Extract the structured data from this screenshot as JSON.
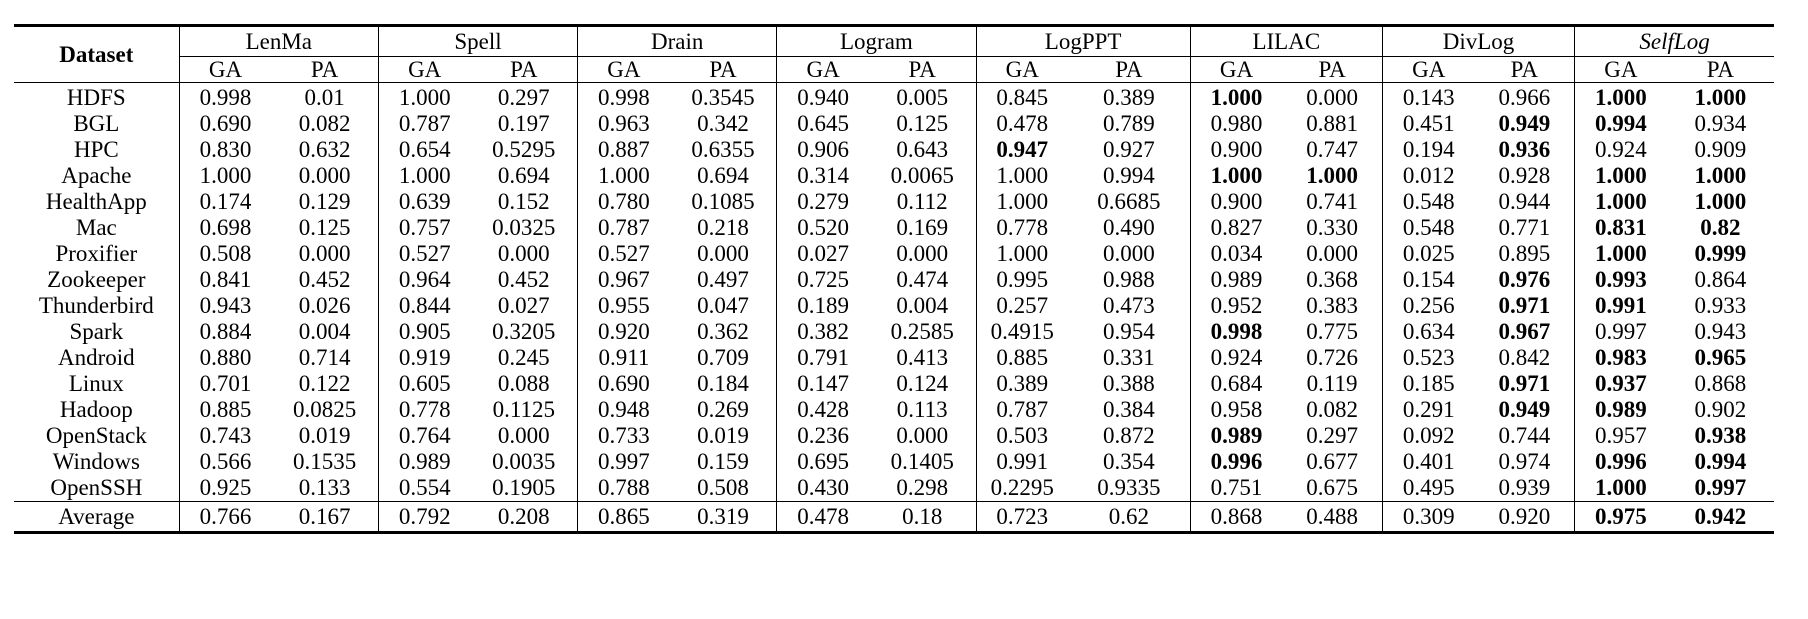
{
  "header": {
    "dataset_label": "Dataset",
    "methods": [
      "LenMa",
      "Spell",
      "Drain",
      "Logram",
      "LogPPT",
      "LILAC",
      "DivLog",
      "SelfLog"
    ],
    "sub_labels": [
      "GA",
      "PA"
    ]
  },
  "rows": [
    {
      "name": "HDFS",
      "cells": [
        {
          "v": "0.998",
          "b": false
        },
        {
          "v": "0.01",
          "b": false
        },
        {
          "v": "1.000",
          "b": false
        },
        {
          "v": "0.297",
          "b": false
        },
        {
          "v": "0.998",
          "b": false
        },
        {
          "v": "0.3545",
          "b": false
        },
        {
          "v": "0.940",
          "b": false
        },
        {
          "v": "0.005",
          "b": false
        },
        {
          "v": "0.845",
          "b": false
        },
        {
          "v": "0.389",
          "b": false
        },
        {
          "v": "1.000",
          "b": true
        },
        {
          "v": "0.000",
          "b": false
        },
        {
          "v": "0.143",
          "b": false
        },
        {
          "v": "0.966",
          "b": false
        },
        {
          "v": "1.000",
          "b": true
        },
        {
          "v": "1.000",
          "b": true
        }
      ]
    },
    {
      "name": "BGL",
      "cells": [
        {
          "v": "0.690",
          "b": false
        },
        {
          "v": "0.082",
          "b": false
        },
        {
          "v": "0.787",
          "b": false
        },
        {
          "v": "0.197",
          "b": false
        },
        {
          "v": "0.963",
          "b": false
        },
        {
          "v": "0.342",
          "b": false
        },
        {
          "v": "0.645",
          "b": false
        },
        {
          "v": "0.125",
          "b": false
        },
        {
          "v": "0.478",
          "b": false
        },
        {
          "v": "0.789",
          "b": false
        },
        {
          "v": "0.980",
          "b": false
        },
        {
          "v": "0.881",
          "b": false
        },
        {
          "v": "0.451",
          "b": false
        },
        {
          "v": "0.949",
          "b": true
        },
        {
          "v": "0.994",
          "b": true
        },
        {
          "v": "0.934",
          "b": false
        }
      ]
    },
    {
      "name": "HPC",
      "cells": [
        {
          "v": "0.830",
          "b": false
        },
        {
          "v": "0.632",
          "b": false
        },
        {
          "v": "0.654",
          "b": false
        },
        {
          "v": "0.5295",
          "b": false
        },
        {
          "v": "0.887",
          "b": false
        },
        {
          "v": "0.6355",
          "b": false
        },
        {
          "v": "0.906",
          "b": false
        },
        {
          "v": "0.643",
          "b": false
        },
        {
          "v": "0.947",
          "b": true
        },
        {
          "v": "0.927",
          "b": false
        },
        {
          "v": "0.900",
          "b": false
        },
        {
          "v": "0.747",
          "b": false
        },
        {
          "v": "0.194",
          "b": false
        },
        {
          "v": "0.936",
          "b": true
        },
        {
          "v": "0.924",
          "b": false
        },
        {
          "v": "0.909",
          "b": false
        }
      ]
    },
    {
      "name": "Apache",
      "cells": [
        {
          "v": "1.000",
          "b": false
        },
        {
          "v": "0.000",
          "b": false
        },
        {
          "v": "1.000",
          "b": false
        },
        {
          "v": "0.694",
          "b": false
        },
        {
          "v": "1.000",
          "b": false
        },
        {
          "v": "0.694",
          "b": false
        },
        {
          "v": "0.314",
          "b": false
        },
        {
          "v": "0.0065",
          "b": false
        },
        {
          "v": "1.000",
          "b": false
        },
        {
          "v": "0.994",
          "b": false
        },
        {
          "v": "1.000",
          "b": true
        },
        {
          "v": "1.000",
          "b": true
        },
        {
          "v": "0.012",
          "b": false
        },
        {
          "v": "0.928",
          "b": false
        },
        {
          "v": "1.000",
          "b": true
        },
        {
          "v": "1.000",
          "b": true
        }
      ]
    },
    {
      "name": "HealthApp",
      "cells": [
        {
          "v": "0.174",
          "b": false
        },
        {
          "v": "0.129",
          "b": false
        },
        {
          "v": "0.639",
          "b": false
        },
        {
          "v": "0.152",
          "b": false
        },
        {
          "v": "0.780",
          "b": false
        },
        {
          "v": "0.1085",
          "b": false
        },
        {
          "v": "0.279",
          "b": false
        },
        {
          "v": "0.112",
          "b": false
        },
        {
          "v": "1.000",
          "b": false
        },
        {
          "v": "0.6685",
          "b": false
        },
        {
          "v": "0.900",
          "b": false
        },
        {
          "v": "0.741",
          "b": false
        },
        {
          "v": "0.548",
          "b": false
        },
        {
          "v": "0.944",
          "b": false
        },
        {
          "v": "1.000",
          "b": true
        },
        {
          "v": "1.000",
          "b": true
        }
      ]
    },
    {
      "name": "Mac",
      "cells": [
        {
          "v": "0.698",
          "b": false
        },
        {
          "v": "0.125",
          "b": false
        },
        {
          "v": "0.757",
          "b": false
        },
        {
          "v": "0.0325",
          "b": false
        },
        {
          "v": "0.787",
          "b": false
        },
        {
          "v": "0.218",
          "b": false
        },
        {
          "v": "0.520",
          "b": false
        },
        {
          "v": "0.169",
          "b": false
        },
        {
          "v": "0.778",
          "b": false
        },
        {
          "v": "0.490",
          "b": false
        },
        {
          "v": "0.827",
          "b": false
        },
        {
          "v": "0.330",
          "b": false
        },
        {
          "v": "0.548",
          "b": false
        },
        {
          "v": "0.771",
          "b": false
        },
        {
          "v": "0.831",
          "b": true
        },
        {
          "v": "0.82",
          "b": true
        }
      ]
    },
    {
      "name": "Proxifier",
      "cells": [
        {
          "v": "0.508",
          "b": false
        },
        {
          "v": "0.000",
          "b": false
        },
        {
          "v": "0.527",
          "b": false
        },
        {
          "v": "0.000",
          "b": false
        },
        {
          "v": "0.527",
          "b": false
        },
        {
          "v": "0.000",
          "b": false
        },
        {
          "v": "0.027",
          "b": false
        },
        {
          "v": "0.000",
          "b": false
        },
        {
          "v": "1.000",
          "b": false
        },
        {
          "v": "0.000",
          "b": false
        },
        {
          "v": "0.034",
          "b": false
        },
        {
          "v": "0.000",
          "b": false
        },
        {
          "v": "0.025",
          "b": false
        },
        {
          "v": "0.895",
          "b": false
        },
        {
          "v": "1.000",
          "b": true
        },
        {
          "v": "0.999",
          "b": true
        }
      ]
    },
    {
      "name": "Zookeeper",
      "cells": [
        {
          "v": "0.841",
          "b": false
        },
        {
          "v": "0.452",
          "b": false
        },
        {
          "v": "0.964",
          "b": false
        },
        {
          "v": "0.452",
          "b": false
        },
        {
          "v": "0.967",
          "b": false
        },
        {
          "v": "0.497",
          "b": false
        },
        {
          "v": "0.725",
          "b": false
        },
        {
          "v": "0.474",
          "b": false
        },
        {
          "v": "0.995",
          "b": false
        },
        {
          "v": "0.988",
          "b": false
        },
        {
          "v": "0.989",
          "b": false
        },
        {
          "v": "0.368",
          "b": false
        },
        {
          "v": "0.154",
          "b": false
        },
        {
          "v": "0.976",
          "b": true
        },
        {
          "v": "0.993",
          "b": true
        },
        {
          "v": "0.864",
          "b": false
        }
      ]
    },
    {
      "name": "Thunderbird",
      "cells": [
        {
          "v": "0.943",
          "b": false
        },
        {
          "v": "0.026",
          "b": false
        },
        {
          "v": "0.844",
          "b": false
        },
        {
          "v": "0.027",
          "b": false
        },
        {
          "v": "0.955",
          "b": false
        },
        {
          "v": "0.047",
          "b": false
        },
        {
          "v": "0.189",
          "b": false
        },
        {
          "v": "0.004",
          "b": false
        },
        {
          "v": "0.257",
          "b": false
        },
        {
          "v": "0.473",
          "b": false
        },
        {
          "v": "0.952",
          "b": false
        },
        {
          "v": "0.383",
          "b": false
        },
        {
          "v": "0.256",
          "b": false
        },
        {
          "v": "0.971",
          "b": true
        },
        {
          "v": "0.991",
          "b": true
        },
        {
          "v": "0.933",
          "b": false
        }
      ]
    },
    {
      "name": "Spark",
      "cells": [
        {
          "v": "0.884",
          "b": false
        },
        {
          "v": "0.004",
          "b": false
        },
        {
          "v": "0.905",
          "b": false
        },
        {
          "v": "0.3205",
          "b": false
        },
        {
          "v": "0.920",
          "b": false
        },
        {
          "v": "0.362",
          "b": false
        },
        {
          "v": "0.382",
          "b": false
        },
        {
          "v": "0.2585",
          "b": false
        },
        {
          "v": "0.4915",
          "b": false
        },
        {
          "v": "0.954",
          "b": false
        },
        {
          "v": "0.998",
          "b": true
        },
        {
          "v": "0.775",
          "b": false
        },
        {
          "v": "0.634",
          "b": false
        },
        {
          "v": "0.967",
          "b": true
        },
        {
          "v": "0.997",
          "b": false
        },
        {
          "v": "0.943",
          "b": false
        }
      ]
    },
    {
      "name": "Android",
      "cells": [
        {
          "v": "0.880",
          "b": false
        },
        {
          "v": "0.714",
          "b": false
        },
        {
          "v": "0.919",
          "b": false
        },
        {
          "v": "0.245",
          "b": false
        },
        {
          "v": "0.911",
          "b": false
        },
        {
          "v": "0.709",
          "b": false
        },
        {
          "v": "0.791",
          "b": false
        },
        {
          "v": "0.413",
          "b": false
        },
        {
          "v": "0.885",
          "b": false
        },
        {
          "v": "0.331",
          "b": false
        },
        {
          "v": "0.924",
          "b": false
        },
        {
          "v": "0.726",
          "b": false
        },
        {
          "v": "0.523",
          "b": false
        },
        {
          "v": "0.842",
          "b": false
        },
        {
          "v": "0.983",
          "b": true
        },
        {
          "v": "0.965",
          "b": true
        }
      ]
    },
    {
      "name": "Linux",
      "cells": [
        {
          "v": "0.701",
          "b": false
        },
        {
          "v": "0.122",
          "b": false
        },
        {
          "v": "0.605",
          "b": false
        },
        {
          "v": "0.088",
          "b": false
        },
        {
          "v": "0.690",
          "b": false
        },
        {
          "v": "0.184",
          "b": false
        },
        {
          "v": "0.147",
          "b": false
        },
        {
          "v": "0.124",
          "b": false
        },
        {
          "v": "0.389",
          "b": false
        },
        {
          "v": "0.388",
          "b": false
        },
        {
          "v": "0.684",
          "b": false
        },
        {
          "v": "0.119",
          "b": false
        },
        {
          "v": "0.185",
          "b": false
        },
        {
          "v": "0.971",
          "b": true
        },
        {
          "v": "0.937",
          "b": true
        },
        {
          "v": "0.868",
          "b": false
        }
      ]
    },
    {
      "name": "Hadoop",
      "cells": [
        {
          "v": "0.885",
          "b": false
        },
        {
          "v": "0.0825",
          "b": false
        },
        {
          "v": "0.778",
          "b": false
        },
        {
          "v": "0.1125",
          "b": false
        },
        {
          "v": "0.948",
          "b": false
        },
        {
          "v": "0.269",
          "b": false
        },
        {
          "v": "0.428",
          "b": false
        },
        {
          "v": "0.113",
          "b": false
        },
        {
          "v": "0.787",
          "b": false
        },
        {
          "v": "0.384",
          "b": false
        },
        {
          "v": "0.958",
          "b": false
        },
        {
          "v": "0.082",
          "b": false
        },
        {
          "v": "0.291",
          "b": false
        },
        {
          "v": "0.949",
          "b": true
        },
        {
          "v": "0.989",
          "b": true
        },
        {
          "v": "0.902",
          "b": false
        }
      ]
    },
    {
      "name": "OpenStack",
      "cells": [
        {
          "v": "0.743",
          "b": false
        },
        {
          "v": "0.019",
          "b": false
        },
        {
          "v": "0.764",
          "b": false
        },
        {
          "v": "0.000",
          "b": false
        },
        {
          "v": "0.733",
          "b": false
        },
        {
          "v": "0.019",
          "b": false
        },
        {
          "v": "0.236",
          "b": false
        },
        {
          "v": "0.000",
          "b": false
        },
        {
          "v": "0.503",
          "b": false
        },
        {
          "v": "0.872",
          "b": false
        },
        {
          "v": "0.989",
          "b": true
        },
        {
          "v": "0.297",
          "b": false
        },
        {
          "v": "0.092",
          "b": false
        },
        {
          "v": "0.744",
          "b": false
        },
        {
          "v": "0.957",
          "b": false
        },
        {
          "v": "0.938",
          "b": true
        }
      ]
    },
    {
      "name": "Windows",
      "cells": [
        {
          "v": "0.566",
          "b": false
        },
        {
          "v": "0.1535",
          "b": false
        },
        {
          "v": "0.989",
          "b": false
        },
        {
          "v": "0.0035",
          "b": false
        },
        {
          "v": "0.997",
          "b": false
        },
        {
          "v": "0.159",
          "b": false
        },
        {
          "v": "0.695",
          "b": false
        },
        {
          "v": "0.1405",
          "b": false
        },
        {
          "v": "0.991",
          "b": false
        },
        {
          "v": "0.354",
          "b": false
        },
        {
          "v": "0.996",
          "b": true
        },
        {
          "v": "0.677",
          "b": false
        },
        {
          "v": "0.401",
          "b": false
        },
        {
          "v": "0.974",
          "b": false
        },
        {
          "v": "0.996",
          "b": true
        },
        {
          "v": "0.994",
          "b": true
        }
      ]
    },
    {
      "name": "OpenSSH",
      "cells": [
        {
          "v": "0.925",
          "b": false
        },
        {
          "v": "0.133",
          "b": false
        },
        {
          "v": "0.554",
          "b": false
        },
        {
          "v": "0.1905",
          "b": false
        },
        {
          "v": "0.788",
          "b": false
        },
        {
          "v": "0.508",
          "b": false
        },
        {
          "v": "0.430",
          "b": false
        },
        {
          "v": "0.298",
          "b": false
        },
        {
          "v": "0.2295",
          "b": false
        },
        {
          "v": "0.9335",
          "b": false
        },
        {
          "v": "0.751",
          "b": false
        },
        {
          "v": "0.675",
          "b": false
        },
        {
          "v": "0.495",
          "b": false
        },
        {
          "v": "0.939",
          "b": false
        },
        {
          "v": "1.000",
          "b": true
        },
        {
          "v": "0.997",
          "b": true
        }
      ]
    }
  ],
  "average": {
    "name": "Average",
    "cells": [
      {
        "v": "0.766",
        "b": false
      },
      {
        "v": "0.167",
        "b": false
      },
      {
        "v": "0.792",
        "b": false
      },
      {
        "v": "0.208",
        "b": false
      },
      {
        "v": "0.865",
        "b": false
      },
      {
        "v": "0.319",
        "b": false
      },
      {
        "v": "0.478",
        "b": false
      },
      {
        "v": "0.18",
        "b": false
      },
      {
        "v": "0.723",
        "b": false
      },
      {
        "v": "0.62",
        "b": false
      },
      {
        "v": "0.868",
        "b": false
      },
      {
        "v": "0.488",
        "b": false
      },
      {
        "v": "0.309",
        "b": false
      },
      {
        "v": "0.920",
        "b": false
      },
      {
        "v": "0.975",
        "b": true
      },
      {
        "v": "0.942",
        "b": true
      }
    ]
  }
}
